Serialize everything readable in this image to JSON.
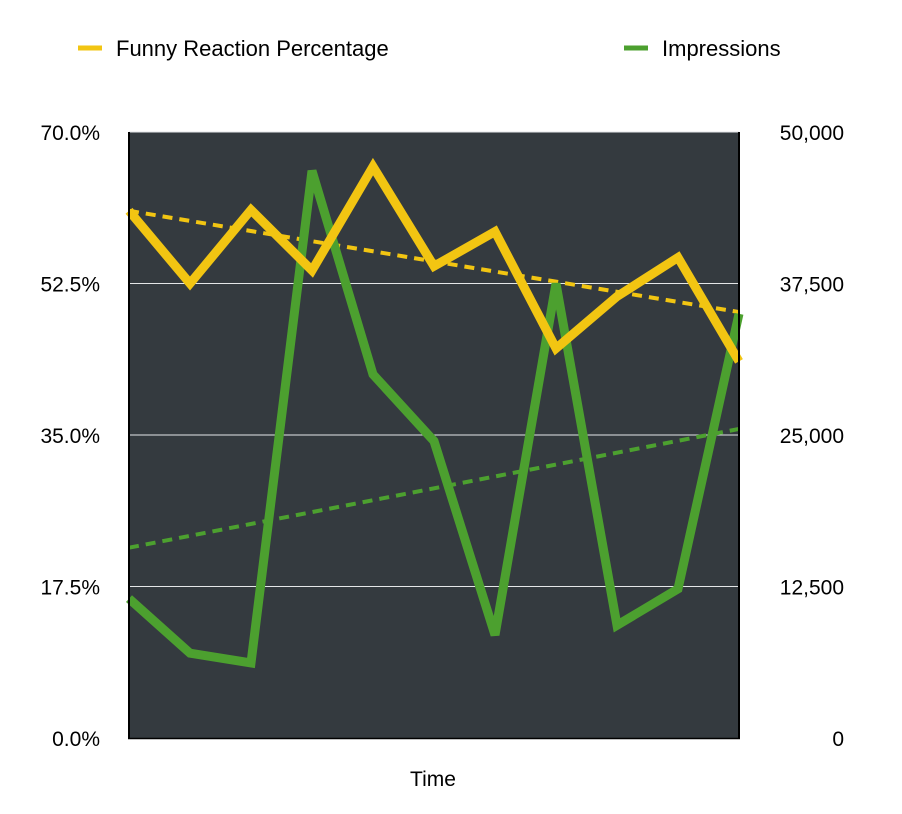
{
  "chart_data": {
    "type": "line",
    "xlabel": "Time",
    "legend": {
      "placement": "top"
    },
    "grid": true,
    "y_left": {
      "ylim": [
        0,
        70
      ],
      "ticks": [
        0,
        17.5,
        35,
        52.5,
        70
      ],
      "tick_labels": [
        "0.0%",
        "17.5%",
        "35.0%",
        "52.5%",
        "70.0%"
      ]
    },
    "y_right": {
      "ylim": [
        0,
        50000
      ],
      "ticks": [
        0,
        12500,
        25000,
        37500,
        50000
      ],
      "tick_labels": [
        "0",
        "12,500",
        "25,000",
        "37,500",
        "50,000"
      ]
    },
    "x": [
      1,
      2,
      3,
      4,
      5,
      6,
      7,
      8,
      9,
      10,
      11
    ],
    "series": [
      {
        "name": "Funny Reaction Percentage",
        "axis": "left",
        "color": "#F2C512",
        "values": [
          60.9,
          52.5,
          61.0,
          54.0,
          66.0,
          54.5,
          58.5,
          45.0,
          51.0,
          55.5,
          43.5
        ],
        "trendline": {
          "start": 60.9,
          "end": 49.2
        }
      },
      {
        "name": "Impressions",
        "axis": "right",
        "color": "#4CA02F",
        "values": [
          11500,
          7000,
          6200,
          46800,
          30000,
          24500,
          8500,
          37500,
          9300,
          12300,
          35000
        ],
        "trendline": {
          "start": 15700,
          "end": 25500
        }
      }
    ]
  }
}
